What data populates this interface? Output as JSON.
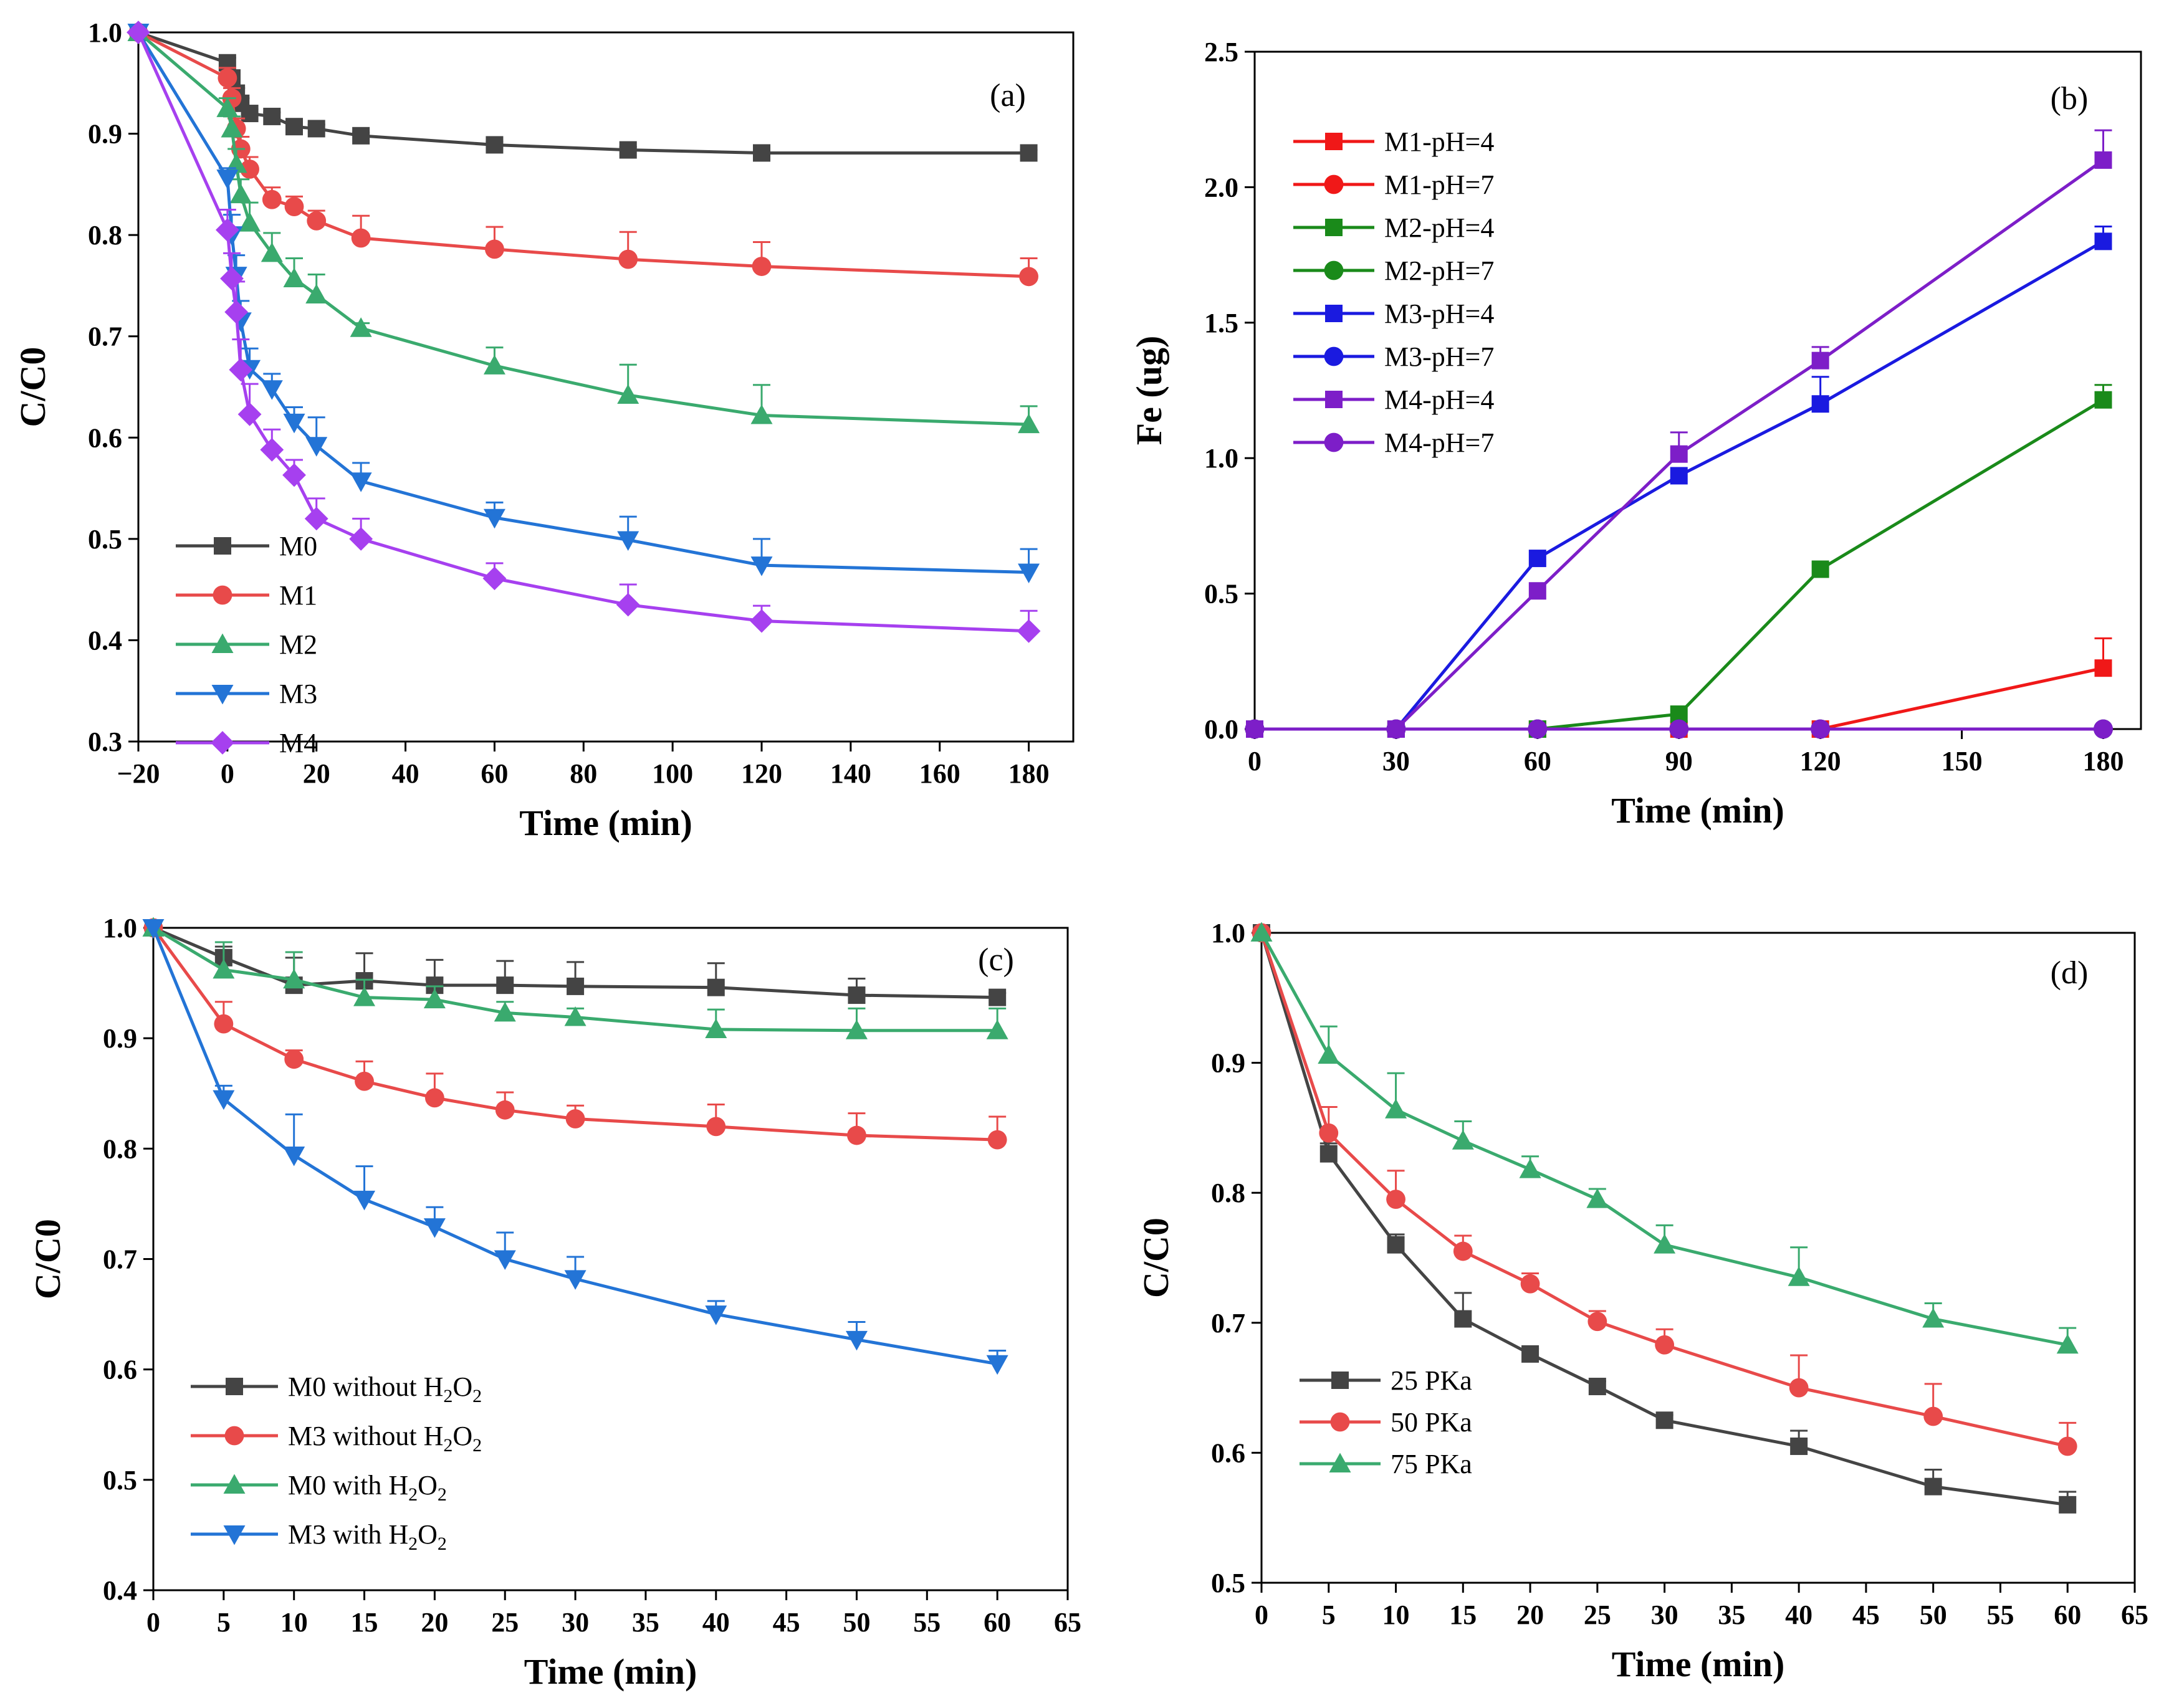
{
  "chart_data": [
    {
      "id": "a",
      "type": "line",
      "panel_label": "(a)",
      "xlabel": "Time (min)",
      "ylabel": "C/C0",
      "xlim": [
        -20,
        190
      ],
      "ylim": [
        0.3,
        1.0
      ],
      "xticks": [
        -20,
        0,
        20,
        40,
        60,
        80,
        100,
        120,
        140,
        160,
        180
      ],
      "xtick_labels": [
        "−20",
        "0",
        "20",
        "40",
        "60",
        "80",
        "100",
        "120",
        "140",
        "160",
        "180"
      ],
      "yticks": [
        0.3,
        0.4,
        0.5,
        0.6,
        0.7,
        0.8,
        0.9,
        1.0
      ],
      "ytick_labels": [
        "0.3",
        "0.4",
        "0.5",
        "0.6",
        "0.7",
        "0.8",
        "0.9",
        "1.0"
      ],
      "legend_position": "bottom-left",
      "series": [
        {
          "name": "M0",
          "color": "#444444",
          "marker": "square",
          "x": [
            -20,
            0,
            1,
            2,
            3,
            5,
            10,
            15,
            20,
            30,
            60,
            90,
            120,
            180
          ],
          "y": [
            1.0,
            0.97,
            0.955,
            0.94,
            0.93,
            0.92,
            0.917,
            0.907,
            0.905,
            0.898,
            0.889,
            0.884,
            0.881,
            0.881
          ],
          "err": [
            0,
            0.005,
            0.005,
            0.005,
            0.005,
            0.004,
            0.004,
            0.004,
            0.004,
            0.003,
            0.003,
            0.003,
            0.003,
            0.003
          ]
        },
        {
          "name": "M1",
          "color": "#e84a4a",
          "marker": "circle",
          "x": [
            -20,
            0,
            1,
            2,
            3,
            5,
            10,
            15,
            20,
            30,
            60,
            90,
            120,
            180
          ],
          "y": [
            1.0,
            0.955,
            0.935,
            0.905,
            0.885,
            0.865,
            0.835,
            0.828,
            0.814,
            0.797,
            0.786,
            0.776,
            0.769,
            0.759
          ],
          "err": [
            0,
            0.01,
            0.01,
            0.01,
            0.012,
            0.012,
            0.012,
            0.01,
            0.01,
            0.022,
            0.022,
            0.027,
            0.024,
            0.018
          ]
        },
        {
          "name": "M2",
          "color": "#3aaa6e",
          "marker": "triangle-up",
          "x": [
            -20,
            0,
            1,
            2,
            3,
            5,
            10,
            15,
            20,
            30,
            60,
            90,
            120,
            180
          ],
          "y": [
            1.0,
            0.925,
            0.905,
            0.87,
            0.84,
            0.812,
            0.782,
            0.757,
            0.741,
            0.708,
            0.671,
            0.642,
            0.622,
            0.613
          ],
          "err": [
            0,
            0.01,
            0.012,
            0.015,
            0.015,
            0.02,
            0.02,
            0.02,
            0.02,
            0.005,
            0.018,
            0.03,
            0.03,
            0.018
          ]
        },
        {
          "name": "M3",
          "color": "#2374d6",
          "marker": "triangle-down",
          "x": [
            -20,
            0,
            1,
            2,
            3,
            5,
            10,
            15,
            20,
            30,
            60,
            90,
            120,
            180
          ],
          "y": [
            1.0,
            0.856,
            0.8,
            0.76,
            0.715,
            0.668,
            0.648,
            0.615,
            0.592,
            0.557,
            0.521,
            0.499,
            0.474,
            0.467
          ],
          "err": [
            0,
            0.01,
            0.02,
            0.02,
            0.02,
            0.02,
            0.015,
            0.015,
            0.028,
            0.018,
            0.015,
            0.023,
            0.026,
            0.023
          ]
        },
        {
          "name": "M4",
          "color": "#a640ef",
          "marker": "diamond",
          "x": [
            -20,
            0,
            1,
            2,
            3,
            5,
            10,
            15,
            20,
            30,
            60,
            90,
            120,
            180
          ],
          "y": [
            1.0,
            0.805,
            0.757,
            0.724,
            0.667,
            0.623,
            0.588,
            0.563,
            0.52,
            0.5,
            0.461,
            0.435,
            0.419,
            0.409
          ],
          "err": [
            0,
            0.02,
            0.025,
            0.03,
            0.03,
            0.03,
            0.02,
            0.015,
            0.02,
            0.02,
            0.015,
            0.02,
            0.015,
            0.02
          ]
        }
      ]
    },
    {
      "id": "b",
      "type": "line",
      "panel_label": "(b)",
      "xlabel": "Time (min)",
      "ylabel": "Fe (ug)",
      "xlim": [
        0,
        188
      ],
      "ylim": [
        0.0,
        2.5
      ],
      "xticks": [
        0,
        30,
        60,
        90,
        120,
        150,
        180
      ],
      "xtick_labels": [
        "0",
        "30",
        "60",
        "90",
        "120",
        "150",
        "180"
      ],
      "yticks": [
        0.0,
        0.5,
        1.0,
        1.5,
        2.0,
        2.5
      ],
      "ytick_labels": [
        "0.0",
        "0.5",
        "1.0",
        "1.5",
        "2.0",
        "2.5"
      ],
      "legend_position": "top-left",
      "series": [
        {
          "name": "M1-pH=4",
          "color": "#f01818",
          "marker": "square",
          "x": [
            0,
            30,
            60,
            90,
            120,
            180
          ],
          "y": [
            0,
            0,
            0,
            0,
            0,
            0.225
          ],
          "err": [
            0,
            0,
            0,
            0,
            0,
            0.11
          ]
        },
        {
          "name": "M1-pH=7",
          "color": "#f01818",
          "marker": "circle",
          "x": [
            0,
            30,
            60,
            90,
            120,
            180
          ],
          "y": [
            0,
            0,
            0,
            0,
            0,
            0
          ],
          "err": [
            0,
            0,
            0,
            0,
            0,
            0
          ]
        },
        {
          "name": "M2-pH=4",
          "color": "#1a8a1a",
          "marker": "square",
          "x": [
            0,
            30,
            60,
            90,
            120,
            180
          ],
          "y": [
            0,
            0,
            0,
            0.055,
            0.59,
            1.215
          ],
          "err": [
            0,
            0,
            0,
            0,
            0,
            0.055
          ]
        },
        {
          "name": "M2-pH=7",
          "color": "#1a8a1a",
          "marker": "circle",
          "x": [
            0,
            30,
            60,
            90,
            120,
            180
          ],
          "y": [
            0,
            0,
            0,
            0,
            0,
            0
          ],
          "err": [
            0,
            0,
            0,
            0,
            0,
            0
          ]
        },
        {
          "name": "M3-pH=4",
          "color": "#1a1ae0",
          "marker": "square",
          "x": [
            0,
            30,
            60,
            90,
            120,
            180
          ],
          "y": [
            0,
            0,
            0.63,
            0.935,
            1.2,
            1.8
          ],
          "err": [
            0,
            0,
            0,
            0,
            0.1,
            0.055
          ]
        },
        {
          "name": "M3-pH=7",
          "color": "#1a1ae0",
          "marker": "circle",
          "x": [
            0,
            30,
            60,
            90,
            120,
            180
          ],
          "y": [
            0,
            0,
            0,
            0,
            0,
            0
          ],
          "err": [
            0,
            0,
            0,
            0,
            0,
            0
          ]
        },
        {
          "name": "M4-pH=4",
          "color": "#7d1ec8",
          "marker": "square",
          "x": [
            0,
            30,
            60,
            90,
            120,
            180
          ],
          "y": [
            0,
            0,
            0.51,
            1.015,
            1.36,
            2.1
          ],
          "err": [
            0,
            0,
            0,
            0.08,
            0.05,
            0.11
          ]
        },
        {
          "name": "M4-pH=7",
          "color": "#7d1ec8",
          "marker": "circle",
          "x": [
            0,
            30,
            60,
            90,
            120,
            180
          ],
          "y": [
            0,
            0,
            0,
            0,
            0,
            0
          ],
          "err": [
            0,
            0,
            0,
            0,
            0,
            0
          ]
        }
      ]
    },
    {
      "id": "c",
      "type": "line",
      "panel_label": "(c)",
      "xlabel": "Time (min)",
      "ylabel": "C/C0",
      "xlim": [
        0,
        65
      ],
      "ylim": [
        0.4,
        1.0
      ],
      "xticks": [
        0,
        5,
        10,
        15,
        20,
        25,
        30,
        35,
        40,
        45,
        50,
        55,
        60,
        65
      ],
      "xtick_labels": [
        "0",
        "5",
        "10",
        "15",
        "20",
        "25",
        "30",
        "35",
        "40",
        "45",
        "50",
        "55",
        "60",
        "65"
      ],
      "yticks": [
        0.4,
        0.5,
        0.6,
        0.7,
        0.8,
        0.9,
        1.0
      ],
      "ytick_labels": [
        "0.4",
        "0.5",
        "0.6",
        "0.7",
        "0.8",
        "0.9",
        "1.0"
      ],
      "legend_position": "bottom-left",
      "series": [
        {
          "name": "M0 without H2O2",
          "legend_main": "M0 without H",
          "legend_sub1": "2",
          "legend_mid": "O",
          "legend_sub2": "2",
          "color": "#444444",
          "marker": "square",
          "x": [
            0,
            5,
            10,
            15,
            20,
            25,
            30,
            40,
            50,
            60
          ],
          "y": [
            1.0,
            0.973,
            0.948,
            0.952,
            0.948,
            0.948,
            0.947,
            0.946,
            0.939,
            0.937
          ],
          "err": [
            0,
            0.01,
            0.025,
            0.025,
            0.023,
            0.022,
            0.022,
            0.022,
            0.015,
            0.004
          ]
        },
        {
          "name": "M3 without H2O2",
          "legend_main": "M3 without H",
          "legend_sub1": "2",
          "legend_mid": "O",
          "legend_sub2": "2",
          "color": "#e84a4a",
          "marker": "circle",
          "x": [
            0,
            5,
            10,
            15,
            20,
            25,
            30,
            40,
            50,
            60
          ],
          "y": [
            1.0,
            0.913,
            0.881,
            0.861,
            0.846,
            0.835,
            0.827,
            0.82,
            0.812,
            0.808
          ],
          "err": [
            0,
            0.02,
            0.008,
            0.018,
            0.022,
            0.016,
            0.012,
            0.02,
            0.02,
            0.021
          ]
        },
        {
          "name": "M0 with H2O2",
          "legend_main": "M0 with H",
          "legend_sub1": "2",
          "legend_mid": "O",
          "legend_sub2": "2",
          "color": "#3aaa6e",
          "marker": "triangle-up",
          "x": [
            0,
            5,
            10,
            15,
            20,
            25,
            30,
            40,
            50,
            60
          ],
          "y": [
            1.0,
            0.962,
            0.953,
            0.937,
            0.935,
            0.923,
            0.919,
            0.908,
            0.907,
            0.907
          ],
          "err": [
            0,
            0.025,
            0.025,
            0.016,
            0.012,
            0.01,
            0.008,
            0.018,
            0.02,
            0.02
          ]
        },
        {
          "name": "M3 with H2O2",
          "legend_main": "M3 with H",
          "legend_sub1": "2",
          "legend_mid": "O",
          "legend_sub2": "2",
          "color": "#2374d6",
          "marker": "triangle-down",
          "x": [
            0,
            5,
            10,
            15,
            20,
            25,
            30,
            40,
            50,
            60
          ],
          "y": [
            1.0,
            0.845,
            0.794,
            0.754,
            0.729,
            0.7,
            0.682,
            0.65,
            0.627,
            0.605
          ],
          "err": [
            0,
            0.012,
            0.037,
            0.03,
            0.018,
            0.024,
            0.02,
            0.012,
            0.016,
            0.012
          ]
        }
      ]
    },
    {
      "id": "d",
      "type": "line",
      "panel_label": "(d)",
      "xlabel": "Time (min)",
      "ylabel": "C/C0",
      "xlim": [
        0,
        65
      ],
      "ylim": [
        0.5,
        1.0
      ],
      "xticks": [
        0,
        5,
        10,
        15,
        20,
        25,
        30,
        35,
        40,
        45,
        50,
        55,
        60,
        65
      ],
      "xtick_labels": [
        "0",
        "5",
        "10",
        "15",
        "20",
        "25",
        "30",
        "35",
        "40",
        "45",
        "50",
        "55",
        "60",
        "65"
      ],
      "yticks": [
        0.5,
        0.6,
        0.7,
        0.8,
        0.9,
        1.0
      ],
      "ytick_labels": [
        "0.5",
        "0.6",
        "0.7",
        "0.8",
        "0.9",
        "1.0"
      ],
      "legend_position": "bottom-left",
      "series": [
        {
          "name": "25 PKa",
          "color": "#444444",
          "marker": "square",
          "x": [
            0,
            5,
            10,
            15,
            20,
            25,
            30,
            40,
            50,
            60
          ],
          "y": [
            1.0,
            0.83,
            0.76,
            0.703,
            0.676,
            0.651,
            0.625,
            0.605,
            0.574,
            0.56
          ],
          "err": [
            0,
            0.008,
            0.008,
            0.02,
            0.004,
            0.004,
            0.004,
            0.012,
            0.013,
            0.01
          ]
        },
        {
          "name": "50 PKa",
          "color": "#e84a4a",
          "marker": "circle",
          "x": [
            0,
            5,
            10,
            15,
            20,
            25,
            30,
            40,
            50,
            60
          ],
          "y": [
            1.0,
            0.846,
            0.795,
            0.755,
            0.73,
            0.701,
            0.683,
            0.65,
            0.628,
            0.605
          ],
          "err": [
            0,
            0.02,
            0.022,
            0.012,
            0.008,
            0.008,
            0.012,
            0.025,
            0.025,
            0.018
          ]
        },
        {
          "name": "75 PKa",
          "color": "#3aaa6e",
          "marker": "triangle-up",
          "x": [
            0,
            5,
            10,
            15,
            20,
            25,
            30,
            40,
            50,
            60
          ],
          "y": [
            1.0,
            0.906,
            0.864,
            0.84,
            0.818,
            0.795,
            0.76,
            0.735,
            0.703,
            0.683
          ],
          "err": [
            0,
            0.022,
            0.028,
            0.015,
            0.01,
            0.008,
            0.015,
            0.023,
            0.012,
            0.013
          ]
        }
      ]
    }
  ]
}
